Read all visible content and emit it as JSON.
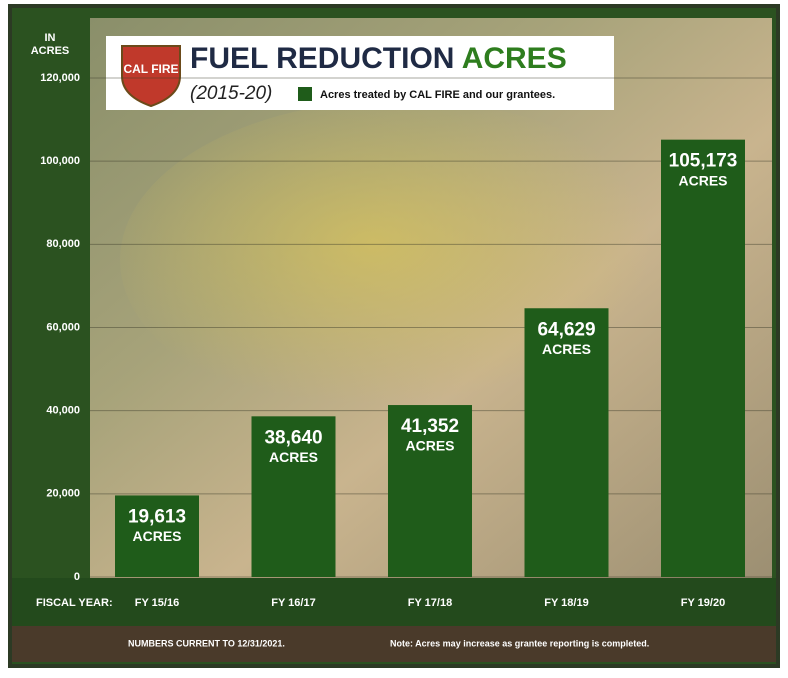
{
  "chart_data": {
    "type": "bar",
    "title": "FUEL REDUCTION",
    "title_highlight": "ACRES",
    "subtitle": "(2015-20)",
    "logo_text": "CAL FIRE",
    "y_label": "IN ACRES",
    "x_label": "FISCAL YEAR:",
    "categories": [
      "FY 15/16",
      "FY 16/17",
      "FY 17/18",
      "FY 18/19",
      "FY 19/20"
    ],
    "series": [
      {
        "name": "Acres treated by CAL FIRE and our grantees.",
        "color": "#1f5c1a",
        "values": [
          19613,
          38640,
          41352,
          64629,
          105173
        ],
        "value_labels": [
          "19,613",
          "38,640",
          "41,352",
          "64,629",
          "105,173"
        ]
      }
    ],
    "unit_label": "ACRES",
    "ylim": [
      0,
      120000
    ],
    "yticks": [
      0,
      {
        "value": 20000,
        "label": "20,000"
      },
      {
        "value": 40000,
        "label": "40,000"
      },
      {
        "value": 60000,
        "label": "60,000"
      },
      {
        "value": 80000,
        "label": "80,000"
      },
      {
        "value": 100000,
        "label": "100,000"
      },
      {
        "value": 120000,
        "label": "120,000"
      }
    ],
    "grid": true,
    "footer_left": "NUMBERS CURRENT TO 12/31/2021.",
    "footer_right": "Note: Acres may increase as grantee reporting is completed."
  }
}
